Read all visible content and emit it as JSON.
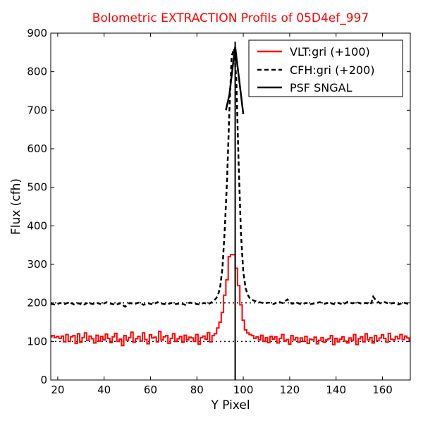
{
  "chart_data": {
    "type": "line",
    "title": "Bolometric EXTRACTION Profils of 05D4ef_997",
    "xlabel": "Y Pixel",
    "ylabel": "Flux (cfh)",
    "xlim": [
      17,
      172
    ],
    "ylim": [
      0,
      900
    ],
    "xticks": [
      20,
      40,
      60,
      80,
      100,
      120,
      140,
      160
    ],
    "yticks": [
      0,
      100,
      200,
      300,
      400,
      500,
      600,
      700,
      800,
      900
    ],
    "grid": false,
    "legend_position": "upper-right",
    "colors": {
      "vlt": "#ff0000",
      "cfh": "#000000",
      "psf": "#000000",
      "title": "#ff0000"
    },
    "reference_lines": [
      {
        "y": 100,
        "style": "dotted"
      },
      {
        "y": 200,
        "style": "dotted"
      }
    ],
    "vertical_marker": {
      "x": 96.5
    },
    "series": [
      {
        "name": "VLT:gri (+100)",
        "style": "steps-red",
        "x": [
          17,
          18,
          19,
          20,
          21,
          22,
          23,
          24,
          25,
          26,
          27,
          28,
          29,
          30,
          31,
          32,
          33,
          34,
          35,
          36,
          37,
          38,
          39,
          40,
          41,
          42,
          43,
          44,
          45,
          46,
          47,
          48,
          49,
          50,
          51,
          52,
          53,
          54,
          55,
          56,
          57,
          58,
          59,
          60,
          61,
          62,
          63,
          64,
          65,
          66,
          67,
          68,
          69,
          70,
          71,
          72,
          73,
          74,
          75,
          76,
          77,
          78,
          79,
          80,
          81,
          82,
          83,
          84,
          85,
          86,
          87,
          88,
          89,
          90,
          91,
          92,
          93,
          94,
          95,
          96,
          97,
          98,
          99,
          100,
          101,
          102,
          103,
          104,
          105,
          106,
          107,
          108,
          109,
          110,
          111,
          112,
          113,
          114,
          115,
          116,
          117,
          118,
          119,
          120,
          121,
          122,
          123,
          124,
          125,
          126,
          127,
          128,
          129,
          130,
          131,
          132,
          133,
          134,
          135,
          136,
          137,
          138,
          139,
          140,
          141,
          142,
          143,
          144,
          145,
          146,
          147,
          148,
          149,
          150,
          151,
          152,
          153,
          154,
          155,
          156,
          157,
          158,
          159,
          160,
          161,
          162,
          163,
          164,
          165,
          166,
          167,
          168,
          169,
          170,
          171,
          172
        ],
        "y": [
          112,
          115,
          110,
          113,
          108,
          114,
          99,
          118,
          100,
          112,
          115,
          95,
          120,
          98,
          110,
          122,
          103,
          114,
          107,
          96,
          116,
          101,
          113,
          104,
          119,
          108,
          97,
          112,
          121,
          100,
          106,
          89,
          115,
          103,
          110,
          124,
          98,
          107,
          113,
          101,
          122,
          105,
          94,
          117,
          109,
          111,
          99,
          126,
          104,
          112,
          115,
          95,
          108,
          120,
          100,
          107,
          113,
          98,
          116,
          104,
          111,
          109,
          100,
          118,
          93,
          110,
          114,
          106,
          123,
          99,
          115,
          120,
          135,
          150,
          175,
          220,
          260,
          320,
          325,
          325,
          290,
          245,
          195,
          155,
          130,
          122,
          118,
          115,
          108,
          112,
          104,
          116,
          100,
          110,
          97,
          113,
          106,
          112,
          96,
          108,
          118,
          101,
          105,
          93,
          115,
          104,
          110,
          98,
          109,
          100,
          113,
          95,
          106,
          104,
          111,
          94,
          103,
          110,
          98,
          104,
          107,
          115,
          92,
          108,
          99,
          106,
          112,
          101,
          96,
          109,
          103,
          118,
          92,
          107,
          112,
          99,
          120,
          104,
          110,
          96,
          115,
          102,
          109,
          117,
          108,
          98,
          121,
          106,
          104,
          113,
          107,
          118,
          105,
          114,
          109,
          103
        ],
        "x_extra_note": ""
      },
      {
        "name": "CFH:gri (+200)",
        "style": "dashed-black",
        "x": [
          17,
          19,
          21,
          23,
          25,
          27,
          29,
          31,
          33,
          35,
          37,
          39,
          41,
          43,
          45,
          47,
          49,
          51,
          53,
          55,
          57,
          59,
          61,
          63,
          65,
          67,
          69,
          71,
          73,
          75,
          77,
          79,
          81,
          83,
          85,
          87,
          88,
          89,
          90,
          91,
          92,
          93,
          94,
          95,
          96,
          97,
          98,
          99,
          100,
          101,
          102,
          103,
          105,
          107,
          109,
          111,
          113,
          115,
          117,
          119,
          121,
          123,
          125,
          127,
          129,
          131,
          133,
          135,
          137,
          139,
          141,
          143,
          145,
          147,
          149,
          151,
          153,
          155,
          156,
          157,
          159,
          161,
          163,
          165,
          167,
          169,
          171,
          172
        ],
        "y": [
          198,
          195,
          200,
          197,
          202,
          196,
          199,
          194,
          201,
          197,
          200,
          196,
          202,
          198,
          195,
          199,
          190,
          200,
          197,
          201,
          195,
          199,
          196,
          202,
          198,
          196,
          200,
          197,
          199,
          195,
          201,
          198,
          196,
          200,
          197,
          204,
          210,
          218,
          240,
          290,
          390,
          520,
          700,
          840,
          860,
          780,
          560,
          380,
          280,
          238,
          220,
          210,
          205,
          202,
          199,
          201,
          197,
          203,
          200,
          209,
          198,
          201,
          196,
          200,
          197,
          199,
          202,
          198,
          201,
          197,
          200,
          196,
          203,
          199,
          202,
          198,
          200,
          197,
          216,
          208,
          199,
          202,
          198,
          200,
          196,
          201,
          198,
          199
        ],
        "x_extra_note": ""
      },
      {
        "name": "PSF SNGAL",
        "style": "solid-black",
        "x": [
          92.5,
          94,
          95,
          96,
          96.5,
          97,
          98,
          99,
          100
        ],
        "y": [
          700,
          740,
          790,
          840,
          865,
          840,
          790,
          740,
          690
        ],
        "x_extra_note": ""
      }
    ]
  }
}
